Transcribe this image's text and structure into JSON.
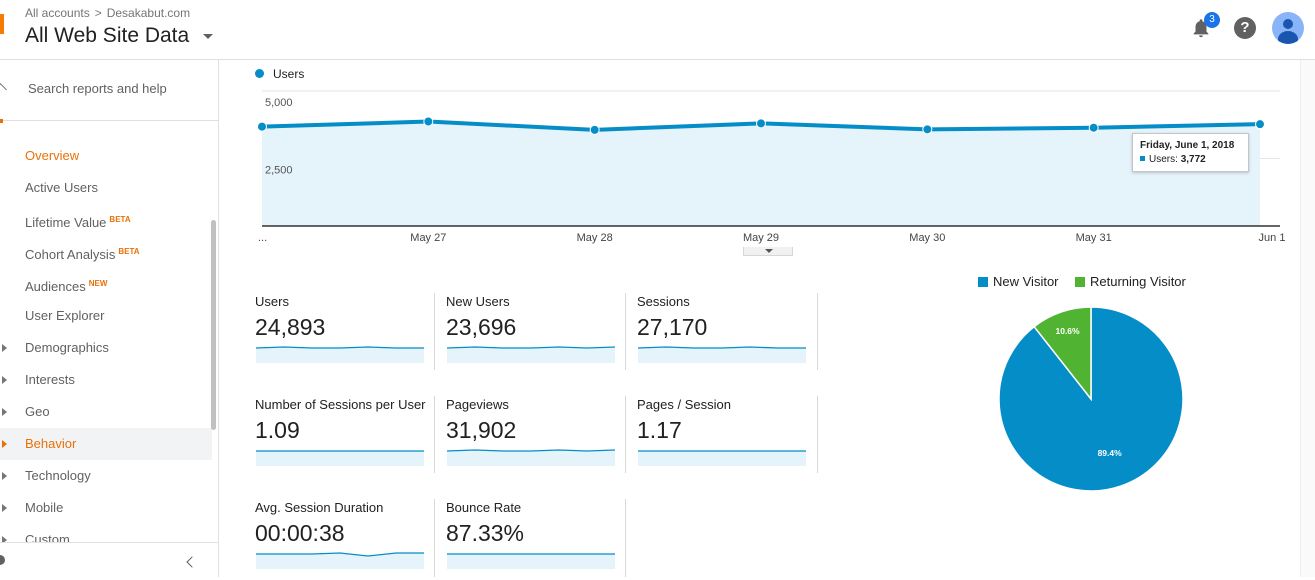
{
  "header": {
    "breadcrumb_root": "All accounts",
    "breadcrumb_account": "Desakabut.com",
    "view_title": "All Web Site Data",
    "notification_count": "3",
    "help_glyph": "?"
  },
  "sidebar": {
    "search_placeholder": "Search reports and help",
    "items": [
      {
        "label": "Overview",
        "tag": ""
      },
      {
        "label": "Active Users",
        "tag": ""
      },
      {
        "label": "Lifetime Value",
        "tag": "BETA"
      },
      {
        "label": "Cohort Analysis",
        "tag": "BETA"
      },
      {
        "label": "Audiences",
        "tag": "NEW"
      },
      {
        "label": "User Explorer",
        "tag": ""
      },
      {
        "label": "Demographics",
        "tag": ""
      },
      {
        "label": "Interests",
        "tag": ""
      },
      {
        "label": "Geo",
        "tag": ""
      },
      {
        "label": "Behavior",
        "tag": ""
      },
      {
        "label": "Technology",
        "tag": ""
      },
      {
        "label": "Mobile",
        "tag": ""
      },
      {
        "label": "Custom",
        "tag": ""
      }
    ]
  },
  "colors": {
    "accent_orange": "#e8710a",
    "users_blue": "#058dc7",
    "returning_green": "#50b432",
    "chart_fill": "#e5f3fa"
  },
  "tooltip": {
    "date": "Friday, June 1, 2018",
    "label": "Users:",
    "value": "3,772"
  },
  "metrics": [
    {
      "label": "Users",
      "value": "24,893"
    },
    {
      "label": "New Users",
      "value": "23,696"
    },
    {
      "label": "Sessions",
      "value": "27,170"
    },
    {
      "label": "Number of Sessions per User",
      "value": "1.09"
    },
    {
      "label": "Pageviews",
      "value": "31,902"
    },
    {
      "label": "Pages / Session",
      "value": "1.17"
    },
    {
      "label": "Avg. Session Duration",
      "value": "00:00:38"
    },
    {
      "label": "Bounce Rate",
      "value": "87.33%"
    }
  ],
  "chart_data": [
    {
      "type": "area",
      "x": [
        "...",
        "May 27",
        "May 28",
        "May 29",
        "May 30",
        "May 31",
        "Jun 1"
      ],
      "series": [
        {
          "name": "Users",
          "values": [
            3680,
            3870,
            3560,
            3800,
            3580,
            3640,
            3772
          ]
        }
      ],
      "y_ticks": [
        "5,000",
        "2,500"
      ],
      "ylim": [
        0,
        5000
      ],
      "grid": true,
      "legend": "top-left"
    },
    {
      "type": "pie",
      "labels": [
        "New Visitor",
        "Returning Visitor"
      ],
      "values": [
        89.4,
        10.6
      ],
      "data_labels": [
        "89.4%",
        "10.6%"
      ],
      "legend": "top"
    }
  ]
}
